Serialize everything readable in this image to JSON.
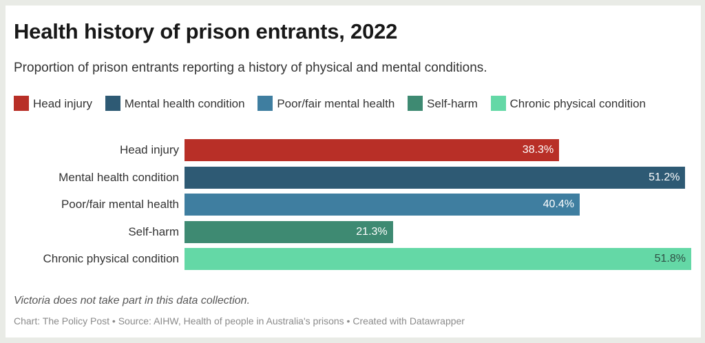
{
  "title": "Health history of prison entrants, 2022",
  "subtitle": "Proportion of prison entrants reporting a history of physical and mental conditions.",
  "legend": [
    {
      "label": "Head injury",
      "color": "#b82f27"
    },
    {
      "label": "Mental health condition",
      "color": "#2e5a74"
    },
    {
      "label": "Poor/fair mental health",
      "color": "#3f7ea0"
    },
    {
      "label": "Self-harm",
      "color": "#3e8a72"
    },
    {
      "label": "Chronic physical condition",
      "color": "#64d8a6"
    }
  ],
  "notes": "Victoria does not take part in this data collection.",
  "source": "Chart: The Policy Post • Source: AIHW, Health of people in Australia's prisons • Created with Datawrapper",
  "chart_data": {
    "type": "bar",
    "orientation": "horizontal",
    "title": "Health history of prison entrants, 2022",
    "subtitle": "Proportion of prison entrants reporting a history of physical and mental conditions.",
    "categories": [
      "Head injury",
      "Mental health condition",
      "Poor/fair mental health",
      "Self-harm",
      "Chronic physical condition"
    ],
    "values": [
      38.3,
      51.2,
      40.4,
      21.3,
      51.8
    ],
    "value_labels": [
      "38.3%",
      "51.2%",
      "40.4%",
      "21.3%",
      "51.8%"
    ],
    "colors": [
      "#b82f27",
      "#2e5a74",
      "#3f7ea0",
      "#3e8a72",
      "#64d8a6"
    ],
    "label_colors": [
      "#ffffff",
      "#ffffff",
      "#ffffff",
      "#ffffff",
      "#2f4f44"
    ],
    "unit": "%",
    "xlabel": "",
    "ylabel": "",
    "xlim": [
      0,
      51.8
    ],
    "grid": false,
    "legend_position": "top-left"
  }
}
